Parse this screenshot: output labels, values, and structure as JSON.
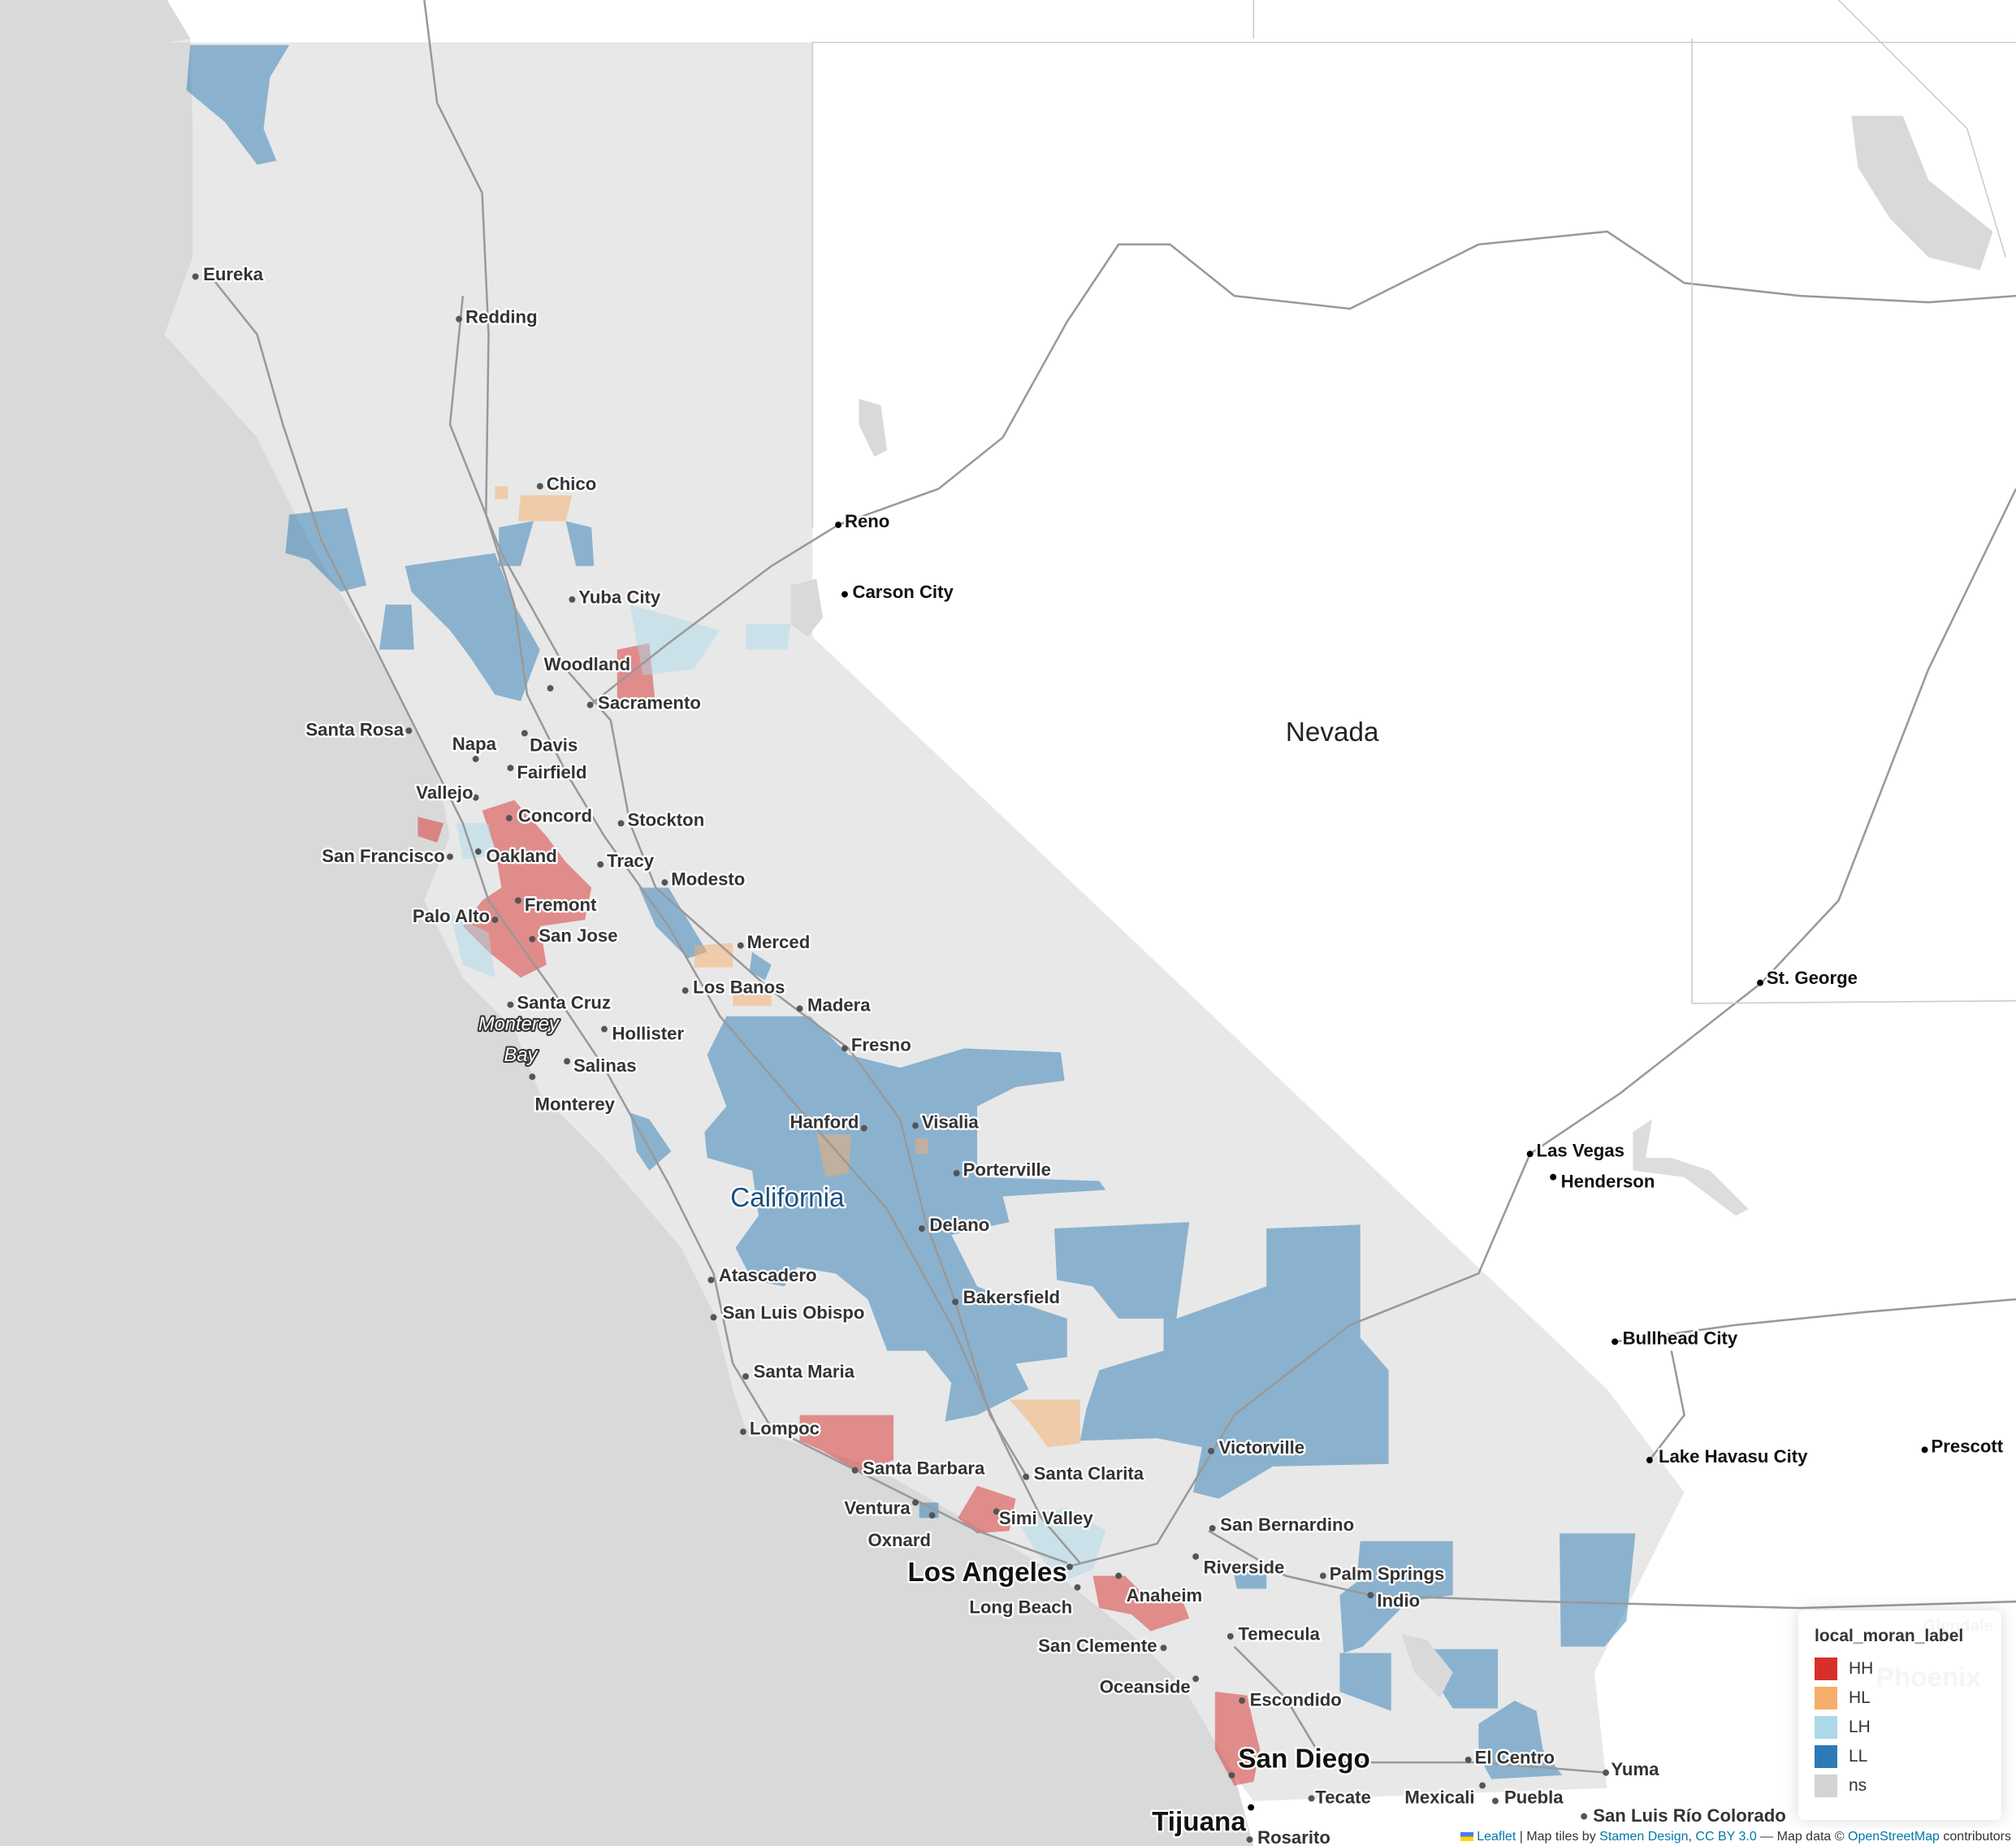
{
  "map": {
    "region_labels": {
      "state_nevada": "Nevada",
      "state_california": "California",
      "water_monterey_1": "Monterey",
      "water_monterey_2": "Bay"
    },
    "cities": [
      "Eureka",
      "Redding",
      "Chico",
      "Yuba City",
      "Woodland",
      "Sacramento",
      "Santa Rosa",
      "Napa",
      "Davis",
      "Fairfield",
      "Vallejo",
      "Concord",
      "Stockton",
      "San Francisco",
      "Oakland",
      "Tracy",
      "Modesto",
      "Fremont",
      "Palo Alto",
      "San Jose",
      "Merced",
      "Los Banos",
      "Madera",
      "Santa Cruz",
      "Hollister",
      "Salinas",
      "Monterey",
      "Fresno",
      "Hanford",
      "Visalia",
      "Porterville",
      "Delano",
      "Atascadero",
      "Bakersfield",
      "San Luis Obispo",
      "Santa Maria",
      "Lompoc",
      "Santa Barbara",
      "Santa Clarita",
      "Victorville",
      "Ventura",
      "Simi Valley",
      "Oxnard",
      "San Bernardino",
      "Los Angeles",
      "Riverside",
      "Palm Springs",
      "Long Beach",
      "Anaheim",
      "Indio",
      "Temecula",
      "San Clemente",
      "Oceanside",
      "Escondido",
      "San Diego",
      "El Centro",
      "Yuma",
      "Tecate",
      "Mexicali",
      "Puebla",
      "Tijuana",
      "Rosarito",
      "San Luis Río Colorado",
      "Reno",
      "Carson City",
      "Las Vegas",
      "Henderson",
      "St. George",
      "Bullhead City",
      "Lake Havasu City",
      "Prescott",
      "Glendale",
      "Phoenix"
    ],
    "colors": {
      "HH": "#d7302b",
      "HL": "#f5ae6b",
      "LH": "#abd9e9",
      "LL": "#2c7bb6",
      "ns": "#d3d3d3",
      "ocean": "#d9d9d9",
      "land_ca": "#e8e8e8"
    }
  },
  "legend": {
    "title": "local_moran_label",
    "items": [
      {
        "label": "HH",
        "color": "#d7302b"
      },
      {
        "label": "HL",
        "color": "#f5ae6b"
      },
      {
        "label": "LH",
        "color": "#abd9e9"
      },
      {
        "label": "LL",
        "color": "#2c7bb6"
      },
      {
        "label": "ns",
        "color": "#d3d3d3"
      }
    ]
  },
  "attribution": {
    "leaflet": "Leaflet",
    "sep1": " | Map tiles by ",
    "stamen": "Stamen Design",
    "sep2": ", ",
    "license": "CC BY 3.0",
    "sep3": " — Map data © ",
    "osm": "OpenStreetMap",
    "sep4": " contributors"
  }
}
